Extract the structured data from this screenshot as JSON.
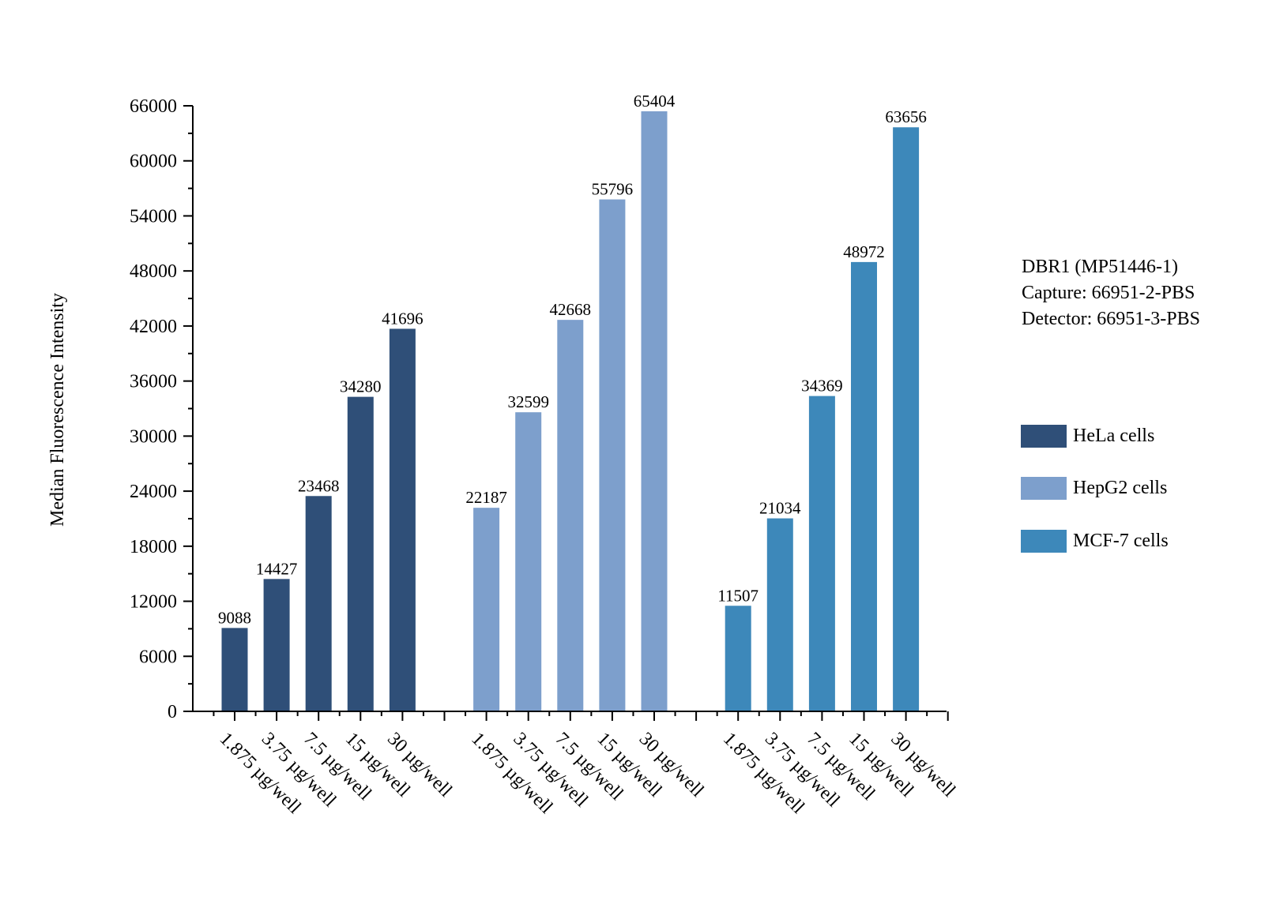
{
  "chart_data": {
    "type": "bar",
    "ylabel": "Median Fluorescence Intensity",
    "ylim": [
      0,
      66000
    ],
    "yticks": [
      0,
      6000,
      12000,
      18000,
      24000,
      30000,
      36000,
      42000,
      48000,
      54000,
      60000,
      66000
    ],
    "categories": [
      "1.875 µg/well",
      "3.75 µg/well",
      "7.5 µg/well",
      "15 µg/well",
      "30 µg/well"
    ],
    "series": [
      {
        "name": "HeLa cells",
        "color": "#2f4f78",
        "values": [
          9088,
          14427,
          23468,
          34280,
          41696
        ]
      },
      {
        "name": "HepG2 cells",
        "color": "#7d9fcc",
        "values": [
          22187,
          32599,
          42668,
          55796,
          65404
        ]
      },
      {
        "name": "MCF-7 cells",
        "color": "#3d88ba",
        "values": [
          11507,
          21034,
          34369,
          48972,
          63656
        ]
      }
    ],
    "grid": false,
    "legend_position": "right",
    "annotation": [
      "DBR1 (MP51446-1)",
      "Capture: 66951-2-PBS",
      "Detector: 66951-3-PBS"
    ]
  }
}
